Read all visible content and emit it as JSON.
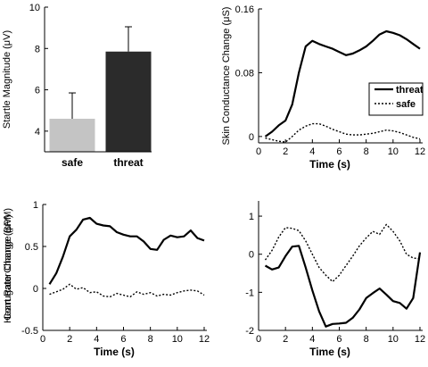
{
  "chart_data": [
    {
      "type": "bar",
      "categories": [
        "safe",
        "threat"
      ],
      "values": [
        4.6,
        7.85
      ],
      "errors": [
        1.25,
        1.2
      ],
      "bar_colors": [
        "#c4c4c4",
        "#2b2b2b"
      ],
      "ylabel": "Startle Magnitude (μV)",
      "ylim": [
        3,
        10
      ],
      "yticks": [
        "4",
        "6",
        "8",
        "10"
      ],
      "ytick_values": [
        4,
        6,
        8,
        10
      ],
      "grid": false
    },
    {
      "type": "line",
      "xlabel": "Time (s)",
      "ylabel": "Skin Conductance Change (μS)",
      "xlim": [
        0,
        12.2
      ],
      "ylim": [
        -0.008,
        0.16
      ],
      "xticks": [
        "0",
        "2",
        "4",
        "6",
        "8",
        "10",
        "12"
      ],
      "xtick_values": [
        0,
        2,
        4,
        6,
        8,
        10,
        12
      ],
      "yticks": [
        "0",
        "0.08",
        "0.16"
      ],
      "ytick_values": [
        0,
        0.08,
        0.16
      ],
      "legend_position": "right-middle",
      "grid": false,
      "series": [
        {
          "name": "threat",
          "style": "solid",
          "x": [
            0.5,
            1,
            1.5,
            2,
            2.5,
            3,
            3.5,
            4,
            4.5,
            5,
            5.5,
            6,
            6.5,
            7,
            7.5,
            8,
            8.5,
            9,
            9.5,
            10,
            10.5,
            11,
            11.5,
            12
          ],
          "y": [
            0,
            0.006,
            0.014,
            0.02,
            0.04,
            0.08,
            0.113,
            0.12,
            0.116,
            0.113,
            0.11,
            0.106,
            0.102,
            0.104,
            0.108,
            0.113,
            0.12,
            0.128,
            0.132,
            0.13,
            0.127,
            0.122,
            0.116,
            0.11
          ]
        },
        {
          "name": "safe",
          "style": "dotted",
          "x": [
            0.5,
            1,
            1.5,
            2,
            2.5,
            3,
            3.5,
            4,
            4.5,
            5,
            5.5,
            6,
            6.5,
            7,
            7.5,
            8,
            8.5,
            9,
            9.5,
            10,
            10.5,
            11,
            11.5,
            12
          ],
          "y": [
            -0.002,
            -0.004,
            -0.006,
            -0.007,
            0.0,
            0.008,
            0.013,
            0.016,
            0.016,
            0.013,
            0.009,
            0.006,
            0.003,
            0.002,
            0.002,
            0.003,
            0.004,
            0.006,
            0.008,
            0.007,
            0.005,
            0.002,
            -0.001,
            -0.003
          ]
        }
      ]
    },
    {
      "type": "line",
      "xlabel": "Time (s)",
      "ylabel": "Corrugator Change (μV)",
      "xlim": [
        0,
        12.2
      ],
      "ylim": [
        -0.5,
        1.0
      ],
      "xticks": [
        "0",
        "2",
        "4",
        "6",
        "8",
        "10",
        "12"
      ],
      "xtick_values": [
        0,
        2,
        4,
        6,
        8,
        10,
        12
      ],
      "yticks": [
        "-0.5",
        "0",
        "0.5",
        "1"
      ],
      "ytick_values": [
        -0.5,
        0,
        0.5,
        1
      ],
      "grid": false,
      "series": [
        {
          "name": "threat",
          "style": "solid",
          "x": [
            0.5,
            1,
            1.5,
            2,
            2.5,
            3,
            3.5,
            4,
            4.5,
            5,
            5.5,
            6,
            6.5,
            7,
            7.5,
            8,
            8.5,
            9,
            9.5,
            10,
            10.5,
            11,
            11.5,
            12
          ],
          "y": [
            0.05,
            0.18,
            0.38,
            0.62,
            0.7,
            0.82,
            0.84,
            0.77,
            0.75,
            0.74,
            0.67,
            0.64,
            0.62,
            0.62,
            0.56,
            0.47,
            0.46,
            0.58,
            0.63,
            0.61,
            0.62,
            0.69,
            0.6,
            0.57
          ]
        },
        {
          "name": "safe",
          "style": "dotted",
          "x": [
            0.5,
            1,
            1.5,
            2,
            2.5,
            3,
            3.5,
            4,
            4.5,
            5,
            5.5,
            6,
            6.5,
            7,
            7.5,
            8,
            8.5,
            9,
            9.5,
            10,
            10.5,
            11,
            11.5,
            12
          ],
          "y": [
            -0.07,
            -0.04,
            -0.01,
            0.05,
            -0.01,
            0.01,
            -0.05,
            -0.04,
            -0.09,
            -0.1,
            -0.06,
            -0.08,
            -0.1,
            -0.04,
            -0.07,
            -0.05,
            -0.09,
            -0.07,
            -0.08,
            -0.05,
            -0.03,
            -0.02,
            -0.03,
            -0.08
          ]
        }
      ]
    },
    {
      "type": "line",
      "xlabel": "Time (s)",
      "ylabel": "Heart Rate Change (BPM)",
      "xlim": [
        0,
        12.2
      ],
      "ylim": [
        -2,
        1.4
      ],
      "xticks": [
        "0",
        "2",
        "4",
        "6",
        "8",
        "10",
        "12"
      ],
      "xtick_values": [
        0,
        2,
        4,
        6,
        8,
        10,
        12
      ],
      "yticks": [
        "-2",
        "-1",
        "0",
        "1"
      ],
      "ytick_values": [
        -2,
        -1,
        0,
        1
      ],
      "grid": false,
      "series": [
        {
          "name": "threat",
          "style": "solid",
          "x": [
            0.5,
            1,
            1.5,
            2,
            2.5,
            3,
            3.5,
            4,
            4.5,
            5,
            5.5,
            6,
            6.5,
            7,
            7.5,
            8,
            8.5,
            9,
            9.5,
            10,
            10.5,
            11,
            11.5,
            12
          ],
          "y": [
            -0.3,
            -0.4,
            -0.35,
            -0.05,
            0.2,
            0.22,
            -0.35,
            -0.95,
            -1.5,
            -1.9,
            -1.83,
            -1.82,
            -1.8,
            -1.67,
            -1.45,
            -1.15,
            -1.02,
            -0.9,
            -1.06,
            -1.23,
            -1.28,
            -1.43,
            -1.15,
            0.05
          ]
        },
        {
          "name": "safe",
          "style": "dotted",
          "x": [
            0.5,
            1,
            1.5,
            2,
            2.5,
            3,
            3.5,
            4,
            4.5,
            5,
            5.5,
            6,
            6.5,
            7,
            7.5,
            8,
            8.5,
            9,
            9.5,
            10,
            10.5,
            11,
            11.5,
            12
          ],
          "y": [
            -0.15,
            0.1,
            0.45,
            0.7,
            0.68,
            0.62,
            0.35,
            0.0,
            -0.35,
            -0.55,
            -0.72,
            -0.55,
            -0.3,
            -0.05,
            0.22,
            0.43,
            0.6,
            0.52,
            0.78,
            0.6,
            0.35,
            0.0,
            -0.1,
            -0.12
          ]
        }
      ]
    }
  ]
}
